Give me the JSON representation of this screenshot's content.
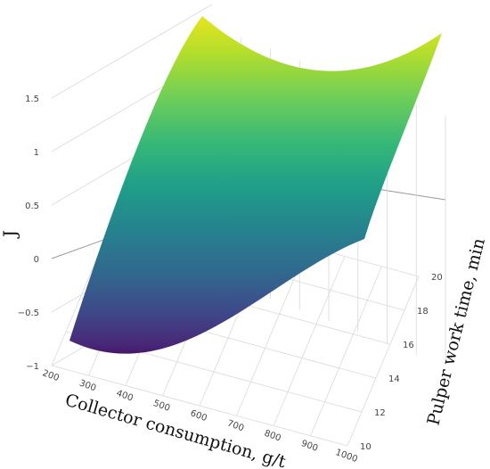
{
  "chart_data": {
    "type": "surface",
    "title": "",
    "xlabel": "Collector consumption, g/t",
    "ylabel": "Pulper work time, min",
    "zlabel": "J",
    "x_ticks": [
      "200",
      "300",
      "400",
      "500",
      "600",
      "700",
      "800",
      "900",
      "1000"
    ],
    "y_ticks": [
      "10",
      "12",
      "14",
      "16",
      "18",
      "20"
    ],
    "z_ticks": [
      "−1",
      "−0.5",
      "0",
      "0.5",
      "1",
      "1.5"
    ],
    "xlim": [
      200,
      1000
    ],
    "ylim": [
      10,
      20
    ],
    "zlim": [
      -1,
      2
    ],
    "colorscale": "viridis",
    "grid": true,
    "corner_values": [
      {
        "x": 200,
        "y": 10,
        "z": -0.85
      },
      {
        "x": 1000,
        "y": 10,
        "z": 0.55
      },
      {
        "x": 200,
        "y": 20,
        "z": 2.2
      },
      {
        "x": 1000,
        "y": 20,
        "z": 2.1
      }
    ],
    "minimum": {
      "x": 380,
      "y": 10,
      "z": -0.97
    }
  }
}
